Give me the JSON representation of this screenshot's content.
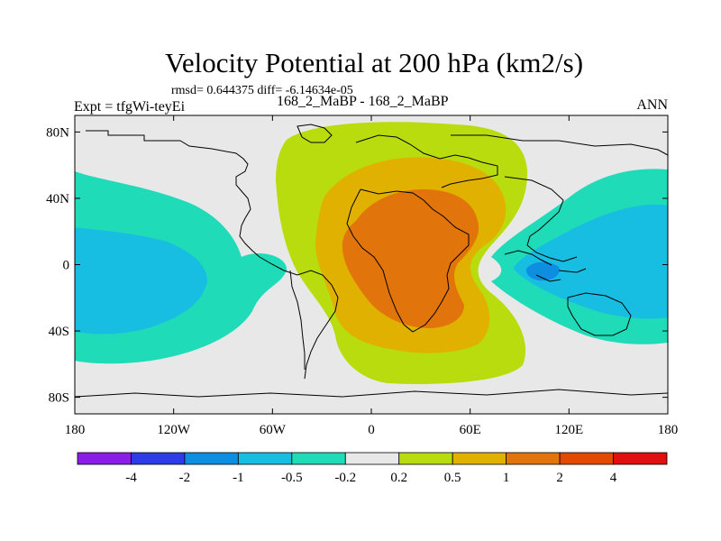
{
  "header": {
    "title": "Velocity Potential at 200 hPa (km2/s)",
    "stats": "rmsd= 0.644375 diff= -6.14634e-05",
    "expt": "Expt = tfgWi-teyEi",
    "runs": "168_2_MaBP - 168_2_MaBP",
    "season": "ANN"
  },
  "chart_data": {
    "type": "contour-map",
    "title": "Velocity Potential at 200 hPa (km2/s)",
    "units": "km2/s",
    "projection": "cylindrical equidistant",
    "xlim": [
      -180,
      180
    ],
    "ylim": [
      -90,
      90
    ],
    "x_ticks": [
      {
        "value": -180,
        "label": "180"
      },
      {
        "value": -120,
        "label": "120W"
      },
      {
        "value": -60,
        "label": "60W"
      },
      {
        "value": 0,
        "label": "0"
      },
      {
        "value": 60,
        "label": "60E"
      },
      {
        "value": 120,
        "label": "120E"
      },
      {
        "value": 180,
        "label": "180"
      }
    ],
    "y_ticks": [
      {
        "value": 80,
        "label": "80N"
      },
      {
        "value": 40,
        "label": "40N"
      },
      {
        "value": 0,
        "label": "0"
      },
      {
        "value": -40,
        "label": "40S"
      },
      {
        "value": -80,
        "label": "80S"
      }
    ],
    "colorbar": {
      "levels": [
        "-4",
        "-2",
        "-1",
        "-0.5",
        "-0.2",
        "0.2",
        "0.5",
        "1",
        "2",
        "4"
      ],
      "colors": [
        "#8a1ee6",
        "#2d3ce6",
        "#0e8ee0",
        "#18bde2",
        "#1fdbb8",
        "#e8e8e8",
        "#b8dc0e",
        "#e1b100",
        "#e1740a",
        "#e14a00",
        "#e01010"
      ]
    },
    "fill_colors": {
      "background": "#e8e8e8",
      "neg_02": "#1fdbb8",
      "neg_05": "#18bde2",
      "neg_1": "#0e8ee0",
      "pos_02": "#b8dc0e",
      "pos_05": "#e1b100",
      "pos_1": "#e1740a"
    }
  }
}
